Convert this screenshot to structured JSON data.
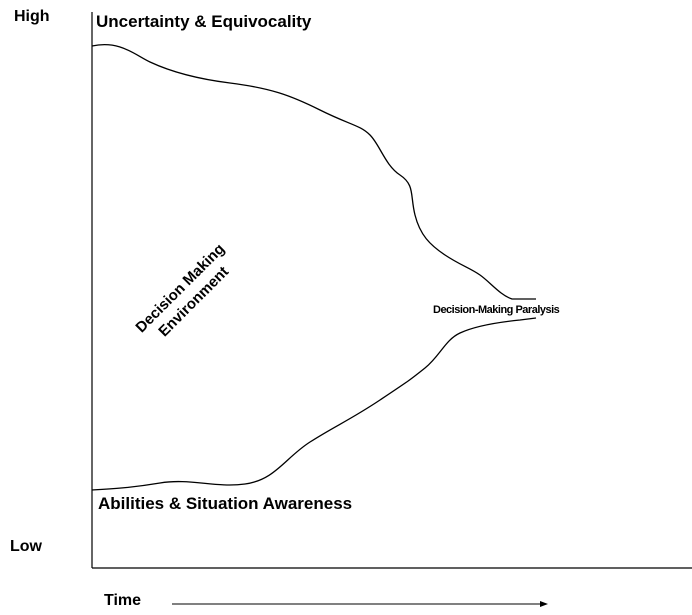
{
  "axis": {
    "high_label": "High",
    "low_label": "Low",
    "time_label": "Time"
  },
  "curves": {
    "top_label": "Uncertainty & Equivocality",
    "bottom_label": "Abilities & Situation Awareness",
    "convergence_label": "Decision-Making Paralysis"
  },
  "region": {
    "label_line1": "Decision Making",
    "label_line2": "Environment"
  },
  "colors": {
    "line": "#000000",
    "background": "#ffffff"
  }
}
